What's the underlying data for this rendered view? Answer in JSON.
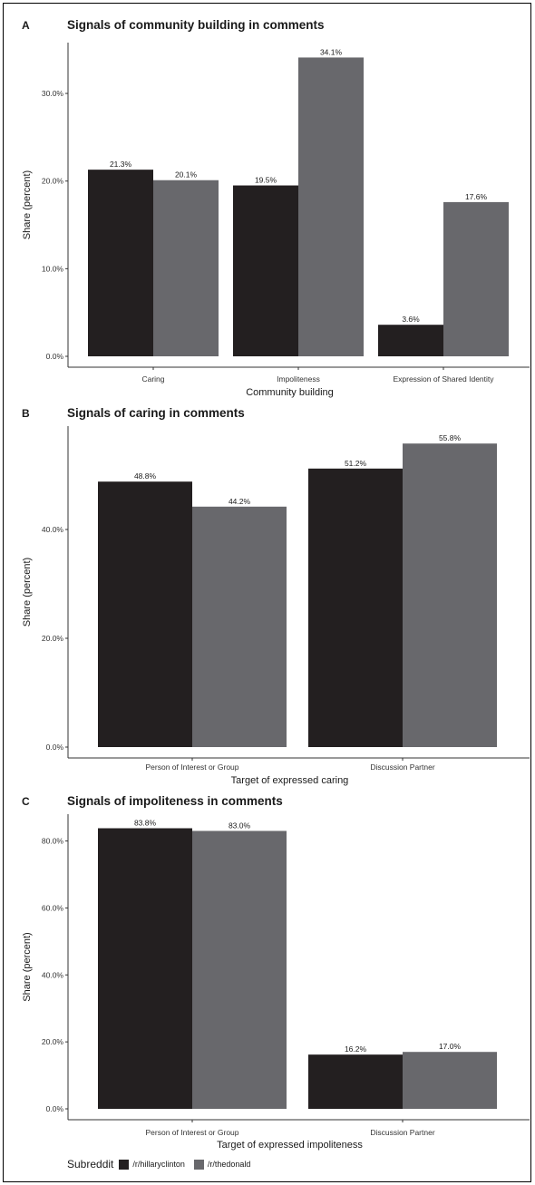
{
  "chart_data": [
    {
      "type": "bar",
      "panel_letter": "A",
      "title": "Signals of community building in comments",
      "xlabel": "Community building",
      "ylabel": "Share (percent)",
      "categories": [
        "Caring",
        "Impoliteness",
        "Expression of Shared Identity"
      ],
      "series": [
        {
          "name": "/r/hillaryclinton",
          "values": [
            21.3,
            19.5,
            3.6
          ],
          "labels": [
            "21.3%",
            "19.5%",
            "3.6%"
          ]
        },
        {
          "name": "/r/thedonald",
          "values": [
            20.1,
            34.1,
            17.6
          ],
          "labels": [
            "20.1%",
            "34.1%",
            "17.6%"
          ]
        }
      ],
      "yticks": [
        0,
        10,
        20,
        30
      ],
      "ytick_labels": [
        "0.0%",
        "10.0%",
        "20.0%",
        "30.0%"
      ],
      "ylim": [
        0,
        35.8
      ],
      "grid": false
    },
    {
      "type": "bar",
      "panel_letter": "B",
      "title": "Signals of caring in comments",
      "xlabel": "Target of expressed caring",
      "ylabel": "Share (percent)",
      "categories": [
        "Person of Interest or Group",
        "Discussion Partner"
      ],
      "series": [
        {
          "name": "/r/hillaryclinton",
          "values": [
            48.8,
            51.2
          ],
          "labels": [
            "48.8%",
            "51.2%"
          ]
        },
        {
          "name": "/r/thedonald",
          "values": [
            44.2,
            55.8
          ],
          "labels": [
            "44.2%",
            "55.8%"
          ]
        }
      ],
      "yticks": [
        0,
        20,
        40
      ],
      "ytick_labels": [
        "0.0%",
        "20.0%",
        "40.0%"
      ],
      "ylim": [
        0,
        59
      ],
      "grid": false
    },
    {
      "type": "bar",
      "panel_letter": "C",
      "title": "Signals of impoliteness in comments",
      "xlabel": "Target of expressed impoliteness",
      "ylabel": "Share (percent)",
      "categories": [
        "Person of Interest or Group",
        "Discussion Partner"
      ],
      "series": [
        {
          "name": "/r/hillaryclinton",
          "values": [
            83.8,
            16.2
          ],
          "labels": [
            "83.8%",
            "16.2%"
          ]
        },
        {
          "name": "/r/thedonald",
          "values": [
            83.0,
            17.0
          ],
          "labels": [
            "83.0%",
            "17.0%"
          ]
        }
      ],
      "yticks": [
        0,
        20,
        40,
        60,
        80
      ],
      "ytick_labels": [
        "0.0%",
        "20.0%",
        "40.0%",
        "60.0%",
        "80.0%"
      ],
      "ylim": [
        0,
        88
      ],
      "grid": false
    }
  ],
  "legend": {
    "title": "Subreddit",
    "items": [
      {
        "label": "/r/hillaryclinton",
        "color": "#231f20"
      },
      {
        "label": "/r/thedonald",
        "color": "#68686c"
      }
    ],
    "placement": "bottom"
  },
  "colors": {
    "series": [
      "#231f20",
      "#68686c"
    ],
    "axis": "#333333",
    "text": "#1a1a1a"
  }
}
